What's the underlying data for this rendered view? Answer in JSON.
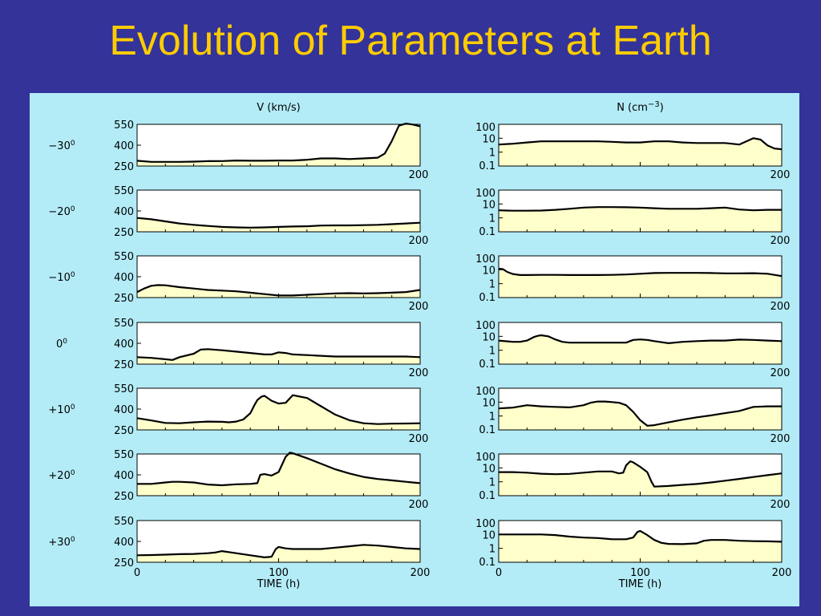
{
  "slide": {
    "title": "Evolution of Parameters at Earth"
  },
  "colors": {
    "background": "#333399",
    "title": "#ffcc00",
    "panel": "#b3ecf7",
    "plot_area": "#ffffff",
    "fill": "#ffffcc",
    "curve": "#000000"
  },
  "columns": [
    {
      "id": "speed",
      "header": "V (km/s)",
      "y_tick_labels": [
        "550",
        "400",
        "250"
      ],
      "x_end_label": "200"
    },
    {
      "id": "density",
      "header": "N (cm",
      "header_exponent": "−3",
      "header_close": ")",
      "y_tick_labels": [
        "100",
        "10",
        "1",
        "0.1"
      ],
      "x_end_label": "200"
    }
  ],
  "rows": [
    {
      "label": "−30",
      "degree_mark": "0"
    },
    {
      "label": "−20",
      "degree_mark": "0"
    },
    {
      "label": "−10",
      "degree_mark": "0"
    },
    {
      "label": "0",
      "degree_mark": "0"
    },
    {
      "label": "+10",
      "degree_mark": "0"
    },
    {
      "label": "+20",
      "degree_mark": "0"
    },
    {
      "label": "+30",
      "degree_mark": "0"
    }
  ],
  "x_axis": {
    "tick_labels": [
      "0",
      "100",
      "200"
    ],
    "title": "TIME (h)"
  },
  "chart_data": [
    {
      "type": "area",
      "title": "V (km/s)",
      "xlabel": "TIME (h)",
      "ylabel": "V (km/s)",
      "xlim": [
        0,
        200
      ],
      "ylim": [
        250,
        550
      ],
      "yticks": [
        250,
        400,
        550
      ],
      "grid": false,
      "series": [
        {
          "name": "−30",
          "x": [
            0,
            10,
            20,
            30,
            40,
            50,
            60,
            70,
            80,
            90,
            100,
            110,
            120,
            130,
            140,
            150,
            160,
            170,
            175,
            180,
            185,
            190,
            195,
            200
          ],
          "y": [
            288,
            280,
            280,
            280,
            282,
            285,
            286,
            290,
            288,
            288,
            290,
            290,
            295,
            305,
            305,
            300,
            305,
            310,
            340,
            430,
            540,
            555,
            548,
            535
          ]
        },
        {
          "name": "−20",
          "x": [
            0,
            10,
            20,
            30,
            40,
            50,
            60,
            70,
            80,
            90,
            100,
            110,
            120,
            130,
            140,
            150,
            160,
            170,
            180,
            190,
            200
          ],
          "y": [
            350,
            340,
            325,
            310,
            300,
            292,
            285,
            282,
            280,
            282,
            285,
            288,
            290,
            295,
            296,
            296,
            298,
            300,
            305,
            310,
            315
          ]
        },
        {
          "name": "−10",
          "x": [
            0,
            5,
            10,
            15,
            20,
            30,
            40,
            50,
            60,
            70,
            80,
            90,
            100,
            110,
            120,
            130,
            140,
            150,
            160,
            170,
            180,
            190,
            200
          ],
          "y": [
            290,
            315,
            335,
            340,
            338,
            325,
            315,
            305,
            300,
            295,
            285,
            275,
            265,
            265,
            270,
            275,
            280,
            282,
            280,
            282,
            285,
            290,
            305
          ]
        },
        {
          "name": "0",
          "x": [
            0,
            10,
            20,
            25,
            30,
            40,
            45,
            50,
            60,
            70,
            80,
            90,
            95,
            100,
            105,
            110,
            120,
            130,
            140,
            150,
            160,
            170,
            180,
            190,
            200
          ],
          "y": [
            300,
            295,
            285,
            280,
            300,
            325,
            355,
            358,
            350,
            340,
            330,
            320,
            320,
            335,
            330,
            320,
            315,
            310,
            305,
            305,
            305,
            305,
            305,
            305,
            300
          ]
        },
        {
          "name": "+10",
          "x": [
            0,
            10,
            20,
            30,
            40,
            50,
            60,
            65,
            70,
            75,
            80,
            83,
            85,
            88,
            90,
            95,
            100,
            105,
            110,
            120,
            130,
            140,
            150,
            160,
            170,
            180,
            190,
            200
          ],
          "y": [
            335,
            318,
            300,
            298,
            305,
            310,
            308,
            305,
            310,
            325,
            370,
            430,
            465,
            490,
            495,
            460,
            440,
            445,
            500,
            480,
            420,
            360,
            320,
            298,
            292,
            295,
            296,
            298
          ]
        },
        {
          "name": "+20",
          "x": [
            0,
            10,
            20,
            25,
            30,
            40,
            50,
            60,
            70,
            80,
            85,
            87,
            90,
            95,
            100,
            105,
            108,
            110,
            120,
            130,
            140,
            150,
            160,
            170,
            180,
            190,
            200
          ],
          "y": [
            335,
            335,
            345,
            350,
            350,
            345,
            330,
            325,
            332,
            335,
            340,
            400,
            405,
            395,
            420,
            530,
            560,
            555,
            520,
            480,
            440,
            410,
            385,
            370,
            360,
            350,
            340
          ]
        },
        {
          "name": "+30",
          "x": [
            0,
            10,
            20,
            30,
            40,
            50,
            55,
            60,
            70,
            80,
            90,
            95,
            98,
            100,
            105,
            110,
            120,
            130,
            140,
            150,
            160,
            170,
            180,
            190,
            200
          ],
          "y": [
            300,
            302,
            305,
            308,
            310,
            315,
            320,
            330,
            315,
            300,
            285,
            290,
            345,
            360,
            350,
            345,
            345,
            345,
            355,
            365,
            375,
            370,
            360,
            350,
            345
          ]
        }
      ]
    },
    {
      "type": "area",
      "title": "N (cm−3)",
      "xlabel": "TIME (h)",
      "ylabel": "N (cm−3)",
      "xlim": [
        0,
        200
      ],
      "ylim": [
        0.1,
        100
      ],
      "yscale": "log",
      "yticks": [
        0.1,
        1,
        10,
        100
      ],
      "grid": false,
      "series": [
        {
          "name": "−30",
          "x": [
            0,
            10,
            20,
            30,
            40,
            50,
            60,
            70,
            80,
            90,
            100,
            110,
            120,
            130,
            140,
            150,
            160,
            170,
            175,
            180,
            185,
            190,
            195,
            200
          ],
          "y": [
            3.5,
            4,
            5,
            6,
            6,
            6,
            6,
            6,
            5.5,
            5,
            5,
            6,
            6,
            5,
            4.5,
            4.5,
            4.5,
            3.5,
            6,
            10,
            8,
            3,
            1.8,
            1.6
          ]
        },
        {
          "name": "−20",
          "x": [
            0,
            10,
            20,
            30,
            40,
            50,
            60,
            70,
            80,
            90,
            100,
            110,
            120,
            130,
            140,
            150,
            160,
            170,
            180,
            190,
            200
          ],
          "y": [
            3.5,
            3.3,
            3.3,
            3.4,
            3.8,
            4.5,
            5.5,
            6,
            6,
            5.8,
            5.5,
            5,
            4.5,
            4.5,
            4.5,
            5,
            5.5,
            4,
            3.5,
            3.8,
            3.8
          ]
        },
        {
          "name": "−10",
          "x": [
            0,
            3,
            6,
            10,
            15,
            20,
            30,
            40,
            50,
            60,
            70,
            80,
            90,
            100,
            110,
            120,
            130,
            140,
            150,
            160,
            170,
            180,
            190,
            200
          ],
          "y": [
            12,
            11,
            7,
            5,
            4.2,
            4.2,
            4.3,
            4.3,
            4.2,
            4.2,
            4.2,
            4.3,
            4.6,
            5.2,
            5.8,
            6,
            6,
            6,
            5.8,
            5.5,
            5.5,
            5.7,
            5.2,
            3.5
          ]
        },
        {
          "name": "0",
          "x": [
            0,
            10,
            15,
            20,
            25,
            28,
            30,
            35,
            40,
            45,
            50,
            60,
            70,
            80,
            90,
            95,
            100,
            105,
            110,
            120,
            130,
            140,
            150,
            160,
            170,
            180,
            190,
            200
          ],
          "y": [
            5,
            4,
            4,
            5,
            9,
            11,
            12,
            10,
            6,
            4,
            3.5,
            3.5,
            3.5,
            3.5,
            3.5,
            5.5,
            6,
            5.5,
            4.5,
            3.2,
            4,
            4.5,
            5,
            5,
            5.8,
            5.5,
            5,
            4.5
          ]
        },
        {
          "name": "+10",
          "x": [
            0,
            10,
            20,
            30,
            40,
            50,
            60,
            65,
            70,
            75,
            80,
            85,
            90,
            95,
            100,
            105,
            110,
            120,
            130,
            140,
            150,
            160,
            170,
            180,
            190,
            200
          ],
          "y": [
            3.5,
            4,
            6,
            5,
            4.5,
            4.2,
            6,
            9,
            11,
            11,
            10,
            9,
            6,
            2,
            0.5,
            0.2,
            0.22,
            0.35,
            0.55,
            0.8,
            1.1,
            1.6,
            2.3,
            4.5,
            5,
            5
          ]
        },
        {
          "name": "+20",
          "x": [
            0,
            10,
            20,
            30,
            40,
            50,
            60,
            70,
            80,
            85,
            88,
            90,
            93,
            95,
            100,
            105,
            108,
            110,
            120,
            130,
            140,
            150,
            160,
            170,
            180,
            190,
            200
          ],
          "y": [
            5,
            5,
            4.5,
            3.8,
            3.5,
            3.7,
            4.5,
            5.5,
            5.5,
            4,
            4.5,
            15,
            30,
            25,
            12,
            5,
            1,
            0.45,
            0.5,
            0.6,
            0.7,
            0.9,
            1.2,
            1.6,
            2.2,
            3,
            4
          ]
        },
        {
          "name": "+30",
          "x": [
            0,
            10,
            20,
            30,
            40,
            50,
            60,
            70,
            80,
            90,
            95,
            98,
            100,
            105,
            110,
            115,
            120,
            130,
            140,
            145,
            150,
            160,
            170,
            180,
            190,
            200
          ],
          "y": [
            10,
            10,
            10,
            10,
            9,
            7,
            6,
            5.5,
            4.5,
            4.5,
            6,
            15,
            18,
            9,
            4,
            2.5,
            2.1,
            2,
            2.3,
            3.5,
            4,
            4,
            3.5,
            3.3,
            3.2,
            3
          ]
        }
      ]
    }
  ]
}
